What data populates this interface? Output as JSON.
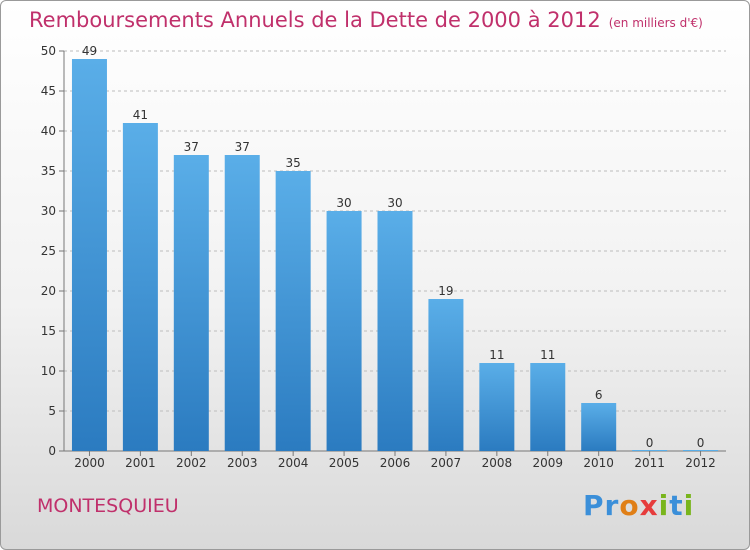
{
  "title": "Remboursements Annuels de la Dette de 2000 à 2012",
  "subtitle": "(en milliers d'€)",
  "commune": "MONTESQUIEU",
  "logo": {
    "letters": [
      "P",
      "r",
      "o",
      "x",
      "i",
      "t",
      "i"
    ],
    "colors": [
      "#3b8fd9",
      "#3b8fd9",
      "#e07f16",
      "#e63c3c",
      "#79b51c",
      "#3b8fd9",
      "#79b51c"
    ]
  },
  "colors": {
    "bar_top": "#5aaee8",
    "bar_bottom": "#2b7bc0",
    "axis": "#777777",
    "grid": "#bcbcbc",
    "text": "#333333"
  },
  "chart_data": {
    "type": "bar",
    "categories": [
      "2000",
      "2001",
      "2002",
      "2003",
      "2004",
      "2005",
      "2006",
      "2007",
      "2008",
      "2009",
      "2010",
      "2011",
      "2012"
    ],
    "values": [
      49,
      41,
      37,
      37,
      35,
      30,
      30,
      19,
      11,
      11,
      6,
      0,
      0
    ],
    "ylim": [
      0,
      50
    ],
    "yticks": [
      0,
      5,
      10,
      15,
      20,
      25,
      30,
      35,
      40,
      45,
      50
    ],
    "grid": true,
    "data_labels": true
  }
}
